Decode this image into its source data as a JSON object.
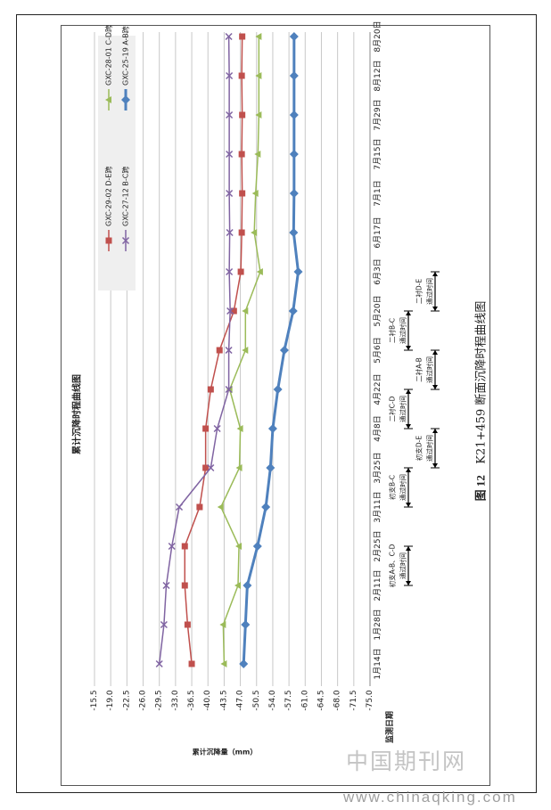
{
  "figure_caption": {
    "number": "图 12",
    "title": "K21+459 断面沉降时程曲线图"
  },
  "watermark": {
    "cn": "中国期刊网",
    "url": "www.chinaqking.com"
  },
  "chart_data": {
    "type": "line",
    "title": "累计沉降时程曲线图",
    "xlabel": "监测日期",
    "ylabel": "累计沉降量（mm）",
    "ylim": [
      -75.0,
      -15.5
    ],
    "yticks": [
      "-15.5",
      "-19.0",
      "-22.5",
      "-26.0",
      "-29.5",
      "-33.0",
      "-36.5",
      "-40.0",
      "-43.5",
      "-47.0",
      "-50.5",
      "-54.0",
      "-57.5",
      "-61.0",
      "-64.5",
      "-68.0",
      "-71.5",
      "-75.0"
    ],
    "categories": [
      "1月14日",
      "1月28日",
      "2月11日",
      "2月25日",
      "3月11日",
      "3月25日",
      "4月8日",
      "4月22日",
      "5月6日",
      "5月20日",
      "6月3日",
      "6月17日",
      "7月1日",
      "7月15日",
      "7月29日",
      "8月12日",
      "8月20日"
    ],
    "grid": true,
    "legend_position": "top",
    "orientation": "rotated-90",
    "series": [
      {
        "name": "GXC-29-02 D-E跨",
        "color": "#c0504d",
        "marker": "square",
        "values": [
          -36.5,
          -35.6,
          -35.0,
          -35.0,
          -38.2,
          -39.5,
          -39.5,
          -40.6,
          -42.5,
          -45.6,
          -47.1,
          -47.3,
          -47.4,
          -47.3,
          -47.4,
          -47.3,
          -47.4
        ]
      },
      {
        "name": "GXC-28-01 C-D跨",
        "color": "#9bbb59",
        "marker": "triangle",
        "values": [
          -43.5,
          -43.3,
          -46.5,
          -46.7,
          -42.8,
          -46.8,
          -47.0,
          -44.7,
          -48.1,
          -48.1,
          -51.3,
          -50.0,
          -50.3,
          -50.8,
          -51.0,
          -51.0,
          -51.0
        ]
      },
      {
        "name": "GXC-27-12 B-C跨",
        "color": "#8064a2",
        "marker": "x",
        "values": [
          -29.5,
          -30.5,
          -31.0,
          -32.2,
          -33.8,
          -40.6,
          -42.0,
          -44.5,
          -44.5,
          -44.8,
          -44.6,
          -44.7,
          -44.6,
          -44.6,
          -44.6,
          -44.6,
          -44.5
        ]
      },
      {
        "name": "GXC-25-19 A-B跨",
        "color": "#4f81bd",
        "marker": "diamond",
        "values": [
          -47.7,
          -48.1,
          -48.5,
          -50.7,
          -52.5,
          -53.5,
          -54.0,
          -55.1,
          -56.5,
          -58.4,
          -59.5,
          -58.5,
          -58.6,
          -58.6,
          -58.6,
          -58.6,
          -58.6
        ]
      }
    ],
    "annotations": [
      {
        "label": "初支A-B、C-D通过时间",
        "from": "2月11日",
        "to": "2月25日"
      },
      {
        "label": "初支B-C通过时间",
        "from": "3月11日",
        "to": "3月25日"
      },
      {
        "label": "初支D-E通过时间",
        "from": "3月25日",
        "to": "4月8日"
      },
      {
        "label": "二衬C-D通过时间",
        "from": "4月8日",
        "to": "4月22日"
      },
      {
        "label": "二衬A-B通过时间",
        "from": "4月22日",
        "to": "5月6日"
      },
      {
        "label": "二衬B-C通过时间",
        "from": "5月6日",
        "to": "5月20日"
      },
      {
        "label": "二衬D-E通过时间",
        "from": "5月20日",
        "to": "6月3日"
      }
    ]
  }
}
